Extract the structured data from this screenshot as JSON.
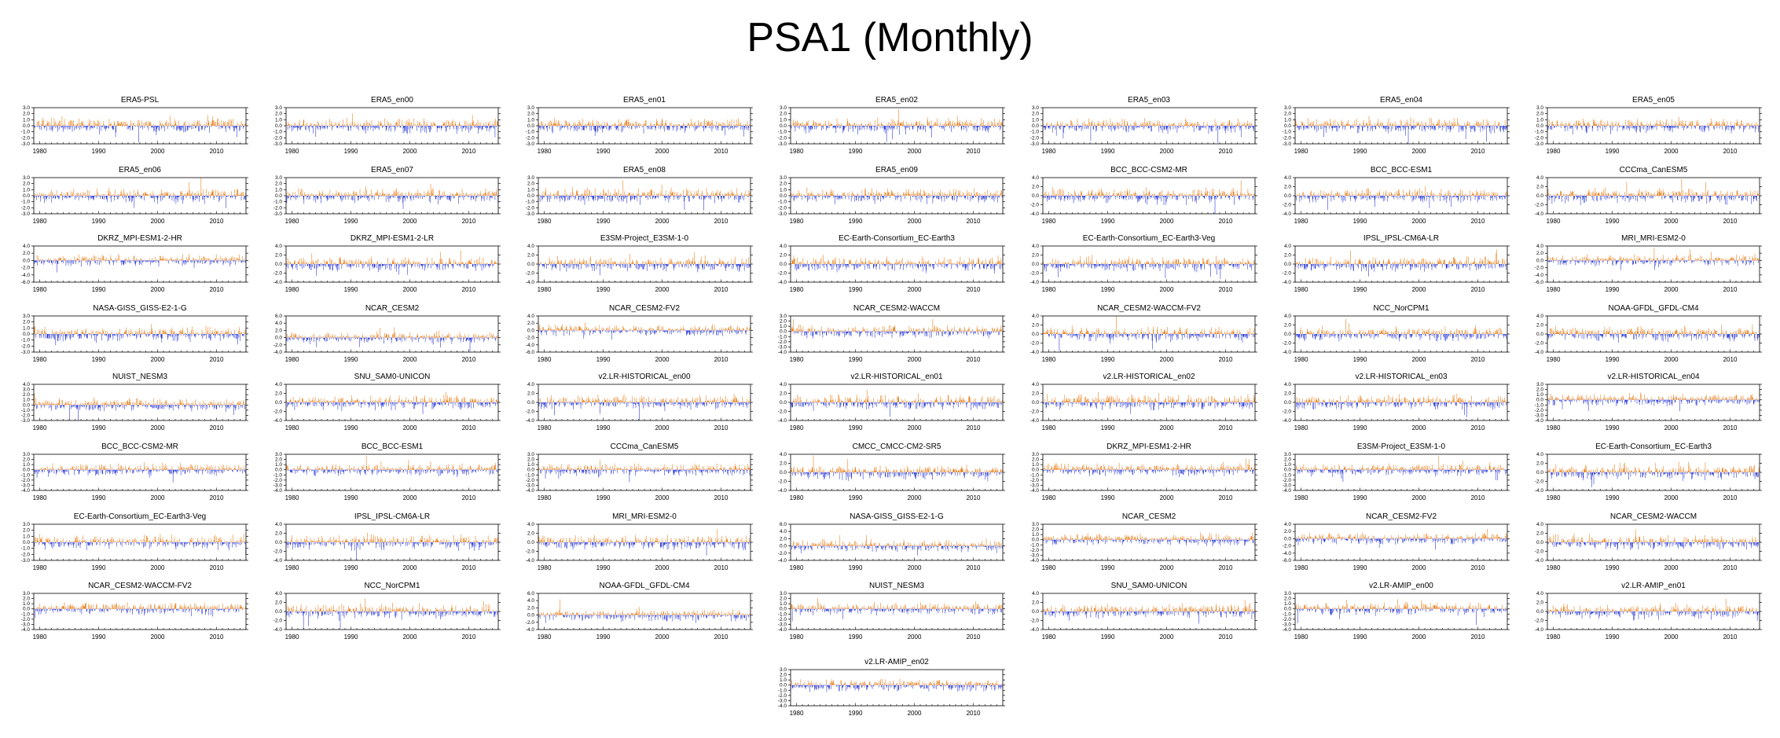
{
  "title": "PSA1 (Monthly)",
  "colors": {
    "positive": "#e8790f",
    "negative": "#1f2fd6",
    "axis": "#000000"
  },
  "chart_data": {
    "type": "bar",
    "description_of_series": "monthly PSA1 index anomaly time series, 1979-2014",
    "x_ticks": [
      "1980",
      "1990",
      "2000",
      "2010"
    ],
    "xlim": [
      1979,
      2015
    ],
    "panels": [
      {
        "title": "ERA5-PSL",
        "yticks": [
          "3.0",
          "2.0",
          "1.0",
          "0.0",
          "-1.0",
          "-2.0",
          "-3.0"
        ],
        "ylim": [
          -3,
          3
        ]
      },
      {
        "title": "ERA5_en00",
        "yticks": [
          "3.0",
          "2.0",
          "1.0",
          "0.0",
          "-1.0",
          "-2.0",
          "-3.0"
        ],
        "ylim": [
          -3,
          3
        ]
      },
      {
        "title": "ERA5_en01",
        "yticks": [
          "3.0",
          "2.0",
          "1.0",
          "0.0",
          "-1.0",
          "-2.0",
          "-3.0"
        ],
        "ylim": [
          -3,
          3
        ]
      },
      {
        "title": "ERA5_en02",
        "yticks": [
          "3.0",
          "2.0",
          "1.0",
          "0.0",
          "-1.0",
          "-2.0",
          "-3.0"
        ],
        "ylim": [
          -3,
          3
        ]
      },
      {
        "title": "ERA5_en03",
        "yticks": [
          "3.0",
          "2.0",
          "1.0",
          "0.0",
          "-1.0",
          "-2.0",
          "-3.0"
        ],
        "ylim": [
          -3,
          3
        ]
      },
      {
        "title": "ERA5_en04",
        "yticks": [
          "3.0",
          "2.0",
          "1.0",
          "0.0",
          "-1.0",
          "-2.0",
          "-3.0"
        ],
        "ylim": [
          -3,
          3
        ]
      },
      {
        "title": "ERA5_en05",
        "yticks": [
          "3.0",
          "2.0",
          "1.0",
          "0.0",
          "-1.0",
          "-2.0",
          "-3.0"
        ],
        "ylim": [
          -3,
          3
        ]
      },
      {
        "title": "ERA5_en06",
        "yticks": [
          "3.0",
          "2.0",
          "1.0",
          "0.0",
          "-1.0",
          "-2.0",
          "-3.0"
        ],
        "ylim": [
          -3,
          3
        ]
      },
      {
        "title": "ERA5_en07",
        "yticks": [
          "3.0",
          "2.0",
          "1.0",
          "0.0",
          "-1.0",
          "-2.0",
          "-3.0"
        ],
        "ylim": [
          -3,
          3
        ]
      },
      {
        "title": "ERA5_en08",
        "yticks": [
          "3.0",
          "2.0",
          "1.0",
          "0.0",
          "-1.0",
          "-2.0",
          "-3.0"
        ],
        "ylim": [
          -3,
          3
        ]
      },
      {
        "title": "ERA5_en09",
        "yticks": [
          "3.0",
          "2.0",
          "1.0",
          "0.0",
          "-1.0",
          "-2.0",
          "-3.0"
        ],
        "ylim": [
          -3,
          3
        ]
      },
      {
        "title": "BCC_BCC-CSM2-MR",
        "yticks": [
          "4.0",
          "2.0",
          "0.0",
          "-2.0",
          "-4.0"
        ],
        "ylim": [
          -4,
          4
        ]
      },
      {
        "title": "BCC_BCC-ESM1",
        "yticks": [
          "4.0",
          "2.0",
          "0.0",
          "-2.0",
          "-4.0"
        ],
        "ylim": [
          -4,
          4
        ]
      },
      {
        "title": "CCCma_CanESM5",
        "yticks": [
          "4.0",
          "2.0",
          "0.0",
          "-2.0",
          "-4.0"
        ],
        "ylim": [
          -4,
          4
        ]
      },
      {
        "title": "DKRZ_MPI-ESM1-2-HR",
        "yticks": [
          "4.0",
          "2.0",
          "0.0",
          "-2.0",
          "-4.0",
          "-6.0"
        ],
        "ylim": [
          -6,
          4
        ]
      },
      {
        "title": "DKRZ_MPI-ESM1-2-LR",
        "yticks": [
          "4.0",
          "2.0",
          "0.0",
          "-2.0",
          "-4.0"
        ],
        "ylim": [
          -4,
          4
        ]
      },
      {
        "title": "E3SM-Project_E3SM-1-0",
        "yticks": [
          "4.0",
          "2.0",
          "0.0",
          "-2.0",
          "-4.0"
        ],
        "ylim": [
          -4,
          4
        ]
      },
      {
        "title": "EC-Earth-Consortium_EC-Earth3",
        "yticks": [
          "4.0",
          "2.0",
          "0.0",
          "-2.0",
          "-4.0"
        ],
        "ylim": [
          -4,
          4
        ]
      },
      {
        "title": "EC-Earth-Consortium_EC-Earth3-Veg",
        "yticks": [
          "4.0",
          "2.0",
          "0.0",
          "-2.0",
          "-4.0"
        ],
        "ylim": [
          -4,
          4
        ]
      },
      {
        "title": "IPSL_IPSL-CM6A-LR",
        "yticks": [
          "4.0",
          "2.0",
          "0.0",
          "-2.0",
          "-4.0"
        ],
        "ylim": [
          -4,
          4
        ]
      },
      {
        "title": "MRI_MRI-ESM2-0",
        "yticks": [
          "4.0",
          "2.0",
          "0.0",
          "-2.0",
          "-4.0",
          "-6.0"
        ],
        "ylim": [
          -6,
          4
        ]
      },
      {
        "title": "NASA-GISS_GISS-E2-1-G",
        "yticks": [
          "3.0",
          "2.0",
          "1.0",
          "0.0",
          "-1.0",
          "-2.0",
          "-3.0"
        ],
        "ylim": [
          -3,
          3
        ]
      },
      {
        "title": "NCAR_CESM2",
        "yticks": [
          "6.0",
          "4.0",
          "2.0",
          "0.0",
          "-2.0",
          "-4.0"
        ],
        "ylim": [
          -4,
          6
        ]
      },
      {
        "title": "NCAR_CESM2-FV2",
        "yticks": [
          "4.0",
          "2.0",
          "0.0",
          "-2.0",
          "-4.0",
          "-6.0"
        ],
        "ylim": [
          -6,
          4
        ]
      },
      {
        "title": "NCAR_CESM2-WACCM",
        "yticks": [
          "3.0",
          "2.0",
          "1.0",
          "0.0",
          "-1.0",
          "-2.0",
          "-3.0",
          "-4.0"
        ],
        "ylim": [
          -4,
          3
        ]
      },
      {
        "title": "NCAR_CESM2-WACCM-FV2",
        "yticks": [
          "4.0",
          "2.0",
          "0.0",
          "-2.0",
          "-4.0"
        ],
        "ylim": [
          -4,
          4
        ]
      },
      {
        "title": "NCC_NorCPM1",
        "yticks": [
          "4.0",
          "2.0",
          "0.0",
          "-2.0",
          "-4.0"
        ],
        "ylim": [
          -4,
          4
        ]
      },
      {
        "title": "NOAA-GFDL_GFDL-CM4",
        "yticks": [
          "4.0",
          "2.0",
          "0.0",
          "-2.0",
          "-4.0"
        ],
        "ylim": [
          -4,
          4
        ]
      },
      {
        "title": "NUIST_NESM3",
        "yticks": [
          "4.0",
          "3.0",
          "2.0",
          "1.0",
          "0.0",
          "-1.0",
          "-2.0",
          "-3.0"
        ],
        "ylim": [
          -3,
          4
        ]
      },
      {
        "title": "SNU_SAM0-UNICON",
        "yticks": [
          "4.0",
          "2.0",
          "0.0",
          "-2.0",
          "-4.0"
        ],
        "ylim": [
          -4,
          4
        ]
      },
      {
        "title": "v2.LR-HISTORICAL_en00",
        "yticks": [
          "4.0",
          "2.0",
          "0.0",
          "-2.0",
          "-4.0"
        ],
        "ylim": [
          -4,
          4
        ]
      },
      {
        "title": "v2.LR-HISTORICAL_en01",
        "yticks": [
          "4.0",
          "2.0",
          "0.0",
          "-2.0",
          "-4.0"
        ],
        "ylim": [
          -4,
          4
        ]
      },
      {
        "title": "v2.LR-HISTORICAL_en02",
        "yticks": [
          "4.0",
          "2.0",
          "0.0",
          "-2.0",
          "-4.0"
        ],
        "ylim": [
          -4,
          4
        ]
      },
      {
        "title": "v2.LR-HISTORICAL_en03",
        "yticks": [
          "4.0",
          "2.0",
          "0.0",
          "-2.0",
          "-4.0"
        ],
        "ylim": [
          -4,
          4
        ]
      },
      {
        "title": "v2.LR-HISTORICAL_en04",
        "yticks": [
          "3.0",
          "2.0",
          "1.0",
          "0.0",
          "-1.0",
          "-2.0",
          "-3.0",
          "-4.0"
        ],
        "ylim": [
          -4,
          3
        ]
      },
      {
        "title": "BCC_BCC-CSM2-MR",
        "yticks": [
          "3.0",
          "2.0",
          "1.0",
          "0.0",
          "-1.0",
          "-2.0",
          "-3.0",
          "-4.0"
        ],
        "ylim": [
          -4,
          3
        ]
      },
      {
        "title": "BCC_BCC-ESM1",
        "yticks": [
          "3.0",
          "2.0",
          "1.0",
          "0.0",
          "-1.0",
          "-2.0",
          "-3.0",
          "-4.0"
        ],
        "ylim": [
          -4,
          3
        ]
      },
      {
        "title": "CCCma_CanESM5",
        "yticks": [
          "3.0",
          "2.0",
          "1.0",
          "0.0",
          "-1.0",
          "-2.0",
          "-3.0",
          "-4.0"
        ],
        "ylim": [
          -4,
          3
        ]
      },
      {
        "title": "CMCC_CMCC-CM2-SR5",
        "yticks": [
          "4.0",
          "2.0",
          "0.0",
          "-2.0",
          "-4.0"
        ],
        "ylim": [
          -4,
          4
        ]
      },
      {
        "title": "DKRZ_MPI-ESM1-2-HR",
        "yticks": [
          "3.0",
          "2.0",
          "1.0",
          "0.0",
          "-1.0",
          "-2.0",
          "-3.0",
          "-4.0"
        ],
        "ylim": [
          -4,
          3
        ]
      },
      {
        "title": "E3SM-Project_E3SM-1-0",
        "yticks": [
          "3.0",
          "2.0",
          "1.0",
          "0.0",
          "-1.0",
          "-2.0",
          "-3.0",
          "-4.0"
        ],
        "ylim": [
          -4,
          3
        ]
      },
      {
        "title": "EC-Earth-Consortium_EC-Earth3",
        "yticks": [
          "4.0",
          "2.0",
          "0.0",
          "-2.0",
          "-4.0"
        ],
        "ylim": [
          -4,
          4
        ]
      },
      {
        "title": "EC-Earth-Consortium_EC-Earth3-Veg",
        "yticks": [
          "3.0",
          "2.0",
          "1.0",
          "0.0",
          "-1.0",
          "-2.0",
          "-3.0"
        ],
        "ylim": [
          -3,
          3
        ]
      },
      {
        "title": "IPSL_IPSL-CM6A-LR",
        "yticks": [
          "4.0",
          "2.0",
          "0.0",
          "-2.0",
          "-4.0"
        ],
        "ylim": [
          -4,
          4
        ]
      },
      {
        "title": "MRI_MRI-ESM2-0",
        "yticks": [
          "4.0",
          "2.0",
          "0.0",
          "-2.0",
          "-4.0"
        ],
        "ylim": [
          -4,
          4
        ]
      },
      {
        "title": "NASA-GISS_GISS-E2-1-G",
        "yticks": [
          "6.0",
          "4.0",
          "2.0",
          "0.0",
          "-2.0",
          "-4.0"
        ],
        "ylim": [
          -4,
          6
        ]
      },
      {
        "title": "NCAR_CESM2",
        "yticks": [
          "3.0",
          "2.0",
          "1.0",
          "0.0",
          "-1.0",
          "-2.0",
          "-3.0",
          "-4.0"
        ],
        "ylim": [
          -4,
          3
        ]
      },
      {
        "title": "NCAR_CESM2-FV2",
        "yticks": [
          "4.0",
          "2.0",
          "0.0",
          "-2.0",
          "-4.0",
          "-6.0"
        ],
        "ylim": [
          -6,
          4
        ]
      },
      {
        "title": "NCAR_CESM2-WACCM",
        "yticks": [
          "4.0",
          "2.0",
          "0.0",
          "-2.0",
          "-4.0"
        ],
        "ylim": [
          -4,
          4
        ]
      },
      {
        "title": "NCAR_CESM2-WACCM-FV2",
        "yticks": [
          "3.0",
          "2.0",
          "1.0",
          "0.0",
          "-1.0",
          "-2.0",
          "-3.0",
          "-4.0"
        ],
        "ylim": [
          -4,
          3
        ]
      },
      {
        "title": "NCC_NorCPM1",
        "yticks": [
          "4.0",
          "2.0",
          "0.0",
          "-2.0",
          "-4.0"
        ],
        "ylim": [
          -4,
          4
        ]
      },
      {
        "title": "NOAA-GFDL_GFDL-CM4",
        "yticks": [
          "6.0",
          "4.0",
          "2.0",
          "0.0",
          "-2.0",
          "-4.0"
        ],
        "ylim": [
          -4,
          6
        ]
      },
      {
        "title": "NUIST_NESM3",
        "yticks": [
          "3.0",
          "2.0",
          "1.0",
          "0.0",
          "-1.0",
          "-2.0",
          "-3.0",
          "-4.0"
        ],
        "ylim": [
          -4,
          3
        ]
      },
      {
        "title": "SNU_SAM0-UNICON",
        "yticks": [
          "4.0",
          "2.0",
          "0.0",
          "-2.0",
          "-4.0"
        ],
        "ylim": [
          -4,
          4
        ]
      },
      {
        "title": "v2.LR-AMIP_en00",
        "yticks": [
          "3.0",
          "2.0",
          "1.0",
          "0.0",
          "-1.0",
          "-2.0",
          "-3.0",
          "-4.0"
        ],
        "ylim": [
          -4,
          3
        ]
      },
      {
        "title": "v2.LR-AMIP_en01",
        "yticks": [
          "4.0",
          "2.0",
          "0.0",
          "-2.0",
          "-4.0"
        ],
        "ylim": [
          -4,
          4
        ]
      },
      {
        "title": "v2.LR-AMIP_en02",
        "yticks": [
          "3.0",
          "2.0",
          "1.0",
          "0.0",
          "-1.0",
          "-2.0",
          "-3.0",
          "-4.0"
        ],
        "ylim": [
          -4,
          3
        ]
      }
    ]
  }
}
